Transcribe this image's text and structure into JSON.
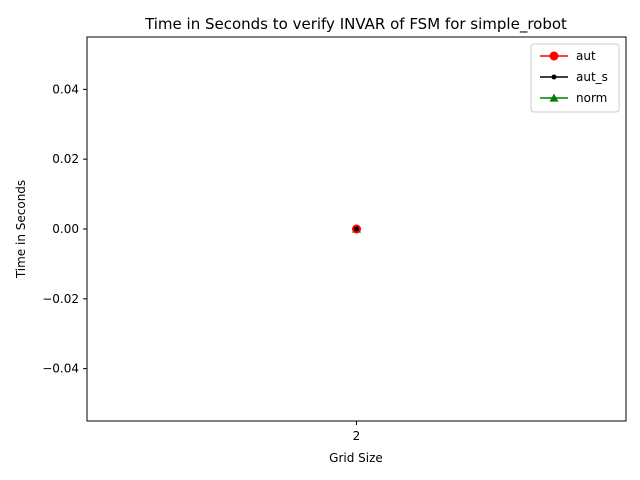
{
  "chart_data": {
    "type": "line",
    "title": "Time in Seconds to verify INVAR of FSM for simple_robot",
    "xlabel": "Grid Size",
    "ylabel": "Time in Seconds",
    "x": [
      2
    ],
    "x_tick_labels": [
      "2"
    ],
    "ylim": [
      -0.055,
      0.055
    ],
    "y_ticks": [
      -0.04,
      -0.02,
      0.0,
      0.02,
      0.04
    ],
    "y_tick_labels": [
      "−0.04",
      "−0.02",
      "0.00",
      "0.02",
      "0.04"
    ],
    "grid": false,
    "legend_position": "upper right",
    "series": [
      {
        "name": "aut",
        "values": [
          0.0
        ],
        "color": "#ff0000",
        "marker": "circle"
      },
      {
        "name": "aut_s",
        "values": [
          0.0
        ],
        "color": "#000000",
        "marker": "point"
      },
      {
        "name": "norm",
        "values": [
          0.0
        ],
        "color": "#008000",
        "marker": "triangle"
      }
    ]
  }
}
